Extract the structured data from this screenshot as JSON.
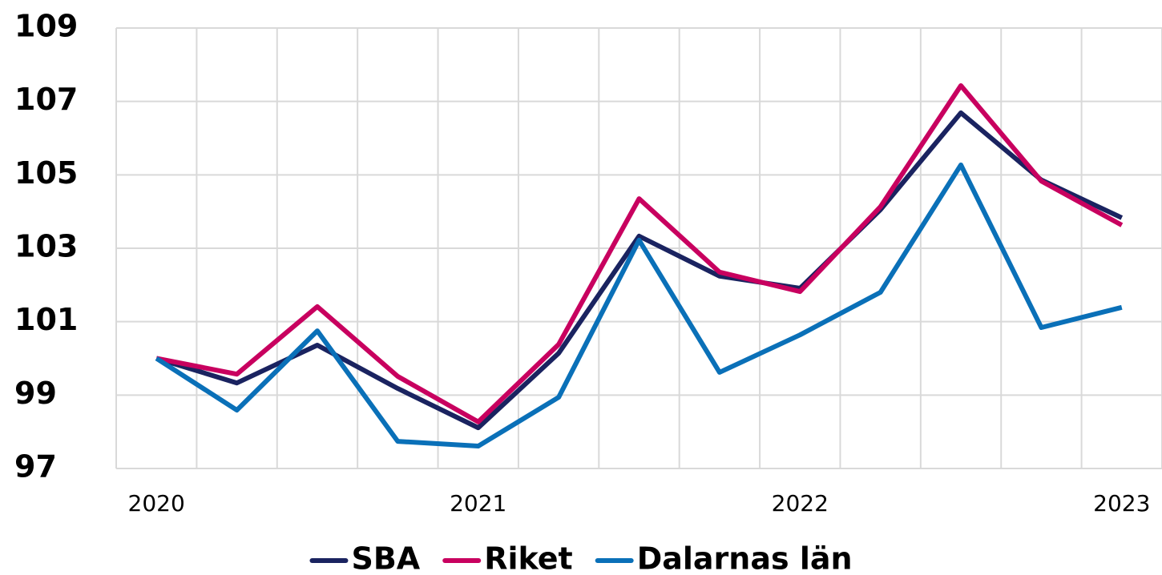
{
  "chart_data": {
    "type": "line",
    "categories": [
      "2020",
      null,
      null,
      null,
      "2021",
      null,
      null,
      null,
      "2022",
      null,
      null,
      null,
      "2023"
    ],
    "series": [
      {
        "name": "SBA",
        "color": "#1a2360",
        "values": [
          100,
          99.33,
          100.36,
          99.18,
          98.11,
          100.14,
          103.33,
          102.24,
          101.91,
          104.05,
          106.69,
          104.86,
          103.83
        ]
      },
      {
        "name": "Riket",
        "color": "#c8005f",
        "values": [
          100,
          99.57,
          101.41,
          99.51,
          98.27,
          100.38,
          104.35,
          102.35,
          101.82,
          104.13,
          107.43,
          104.83,
          103.63
        ]
      },
      {
        "name": "Dalarnas län",
        "color": "#0a70b8",
        "values": [
          100,
          98.59,
          100.75,
          97.74,
          97.61,
          98.94,
          103.22,
          99.62,
          100.64,
          101.8,
          105.27,
          100.84,
          101.39
        ]
      }
    ],
    "ylim": [
      97,
      109
    ],
    "yticks": [
      97,
      99,
      101,
      103,
      105,
      107,
      109
    ],
    "grid": true,
    "legend": "bottom"
  }
}
